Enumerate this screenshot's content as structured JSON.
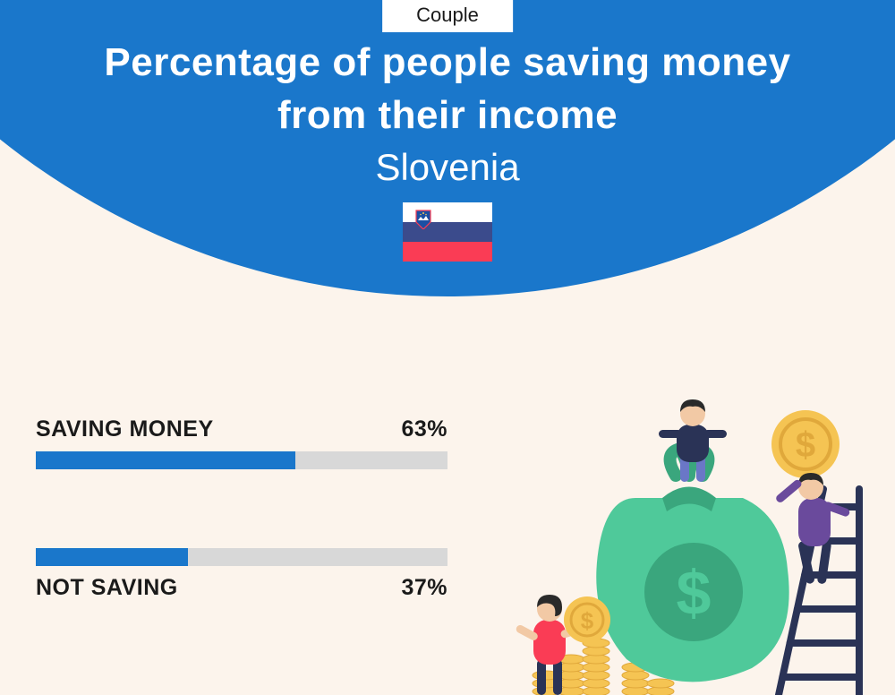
{
  "tag": "Couple",
  "title_line1": "Percentage of people saving money",
  "title_line2": "from their income",
  "country": "Slovenia",
  "colors": {
    "arc": "#1a77cb",
    "background": "#fcf4ec",
    "bar_fill": "#1a77cb",
    "bar_track": "#d8d8d8",
    "text_dark": "#1a1a1a",
    "text_light": "#ffffff",
    "flag_top": "#ffffff",
    "flag_mid": "#3b4b8c",
    "flag_bot": "#fa3c55",
    "bag": "#4fc99a",
    "bag_dark": "#3aa67d",
    "coin": "#f5c453",
    "coin_dark": "#e0a83b",
    "ladder": "#2a3356",
    "person1_top": "#2a3356",
    "person1_bot": "#6a77c7",
    "person2_top": "#fa3c55",
    "person2_bot": "#2a3356",
    "person3_top": "#6a4a9c",
    "person3_bot": "#2a3356",
    "skin": "#f2c9a5",
    "hair": "#2a2a2a"
  },
  "bars": [
    {
      "label": "SAVING MONEY",
      "value": 63,
      "value_text": "63%",
      "label_pos": "above"
    },
    {
      "label": "NOT SAVING",
      "value": 37,
      "value_text": "37%",
      "label_pos": "below"
    }
  ],
  "title_fontsize": 44,
  "country_fontsize": 42,
  "label_fontsize": 25,
  "tag_fontsize": 22
}
